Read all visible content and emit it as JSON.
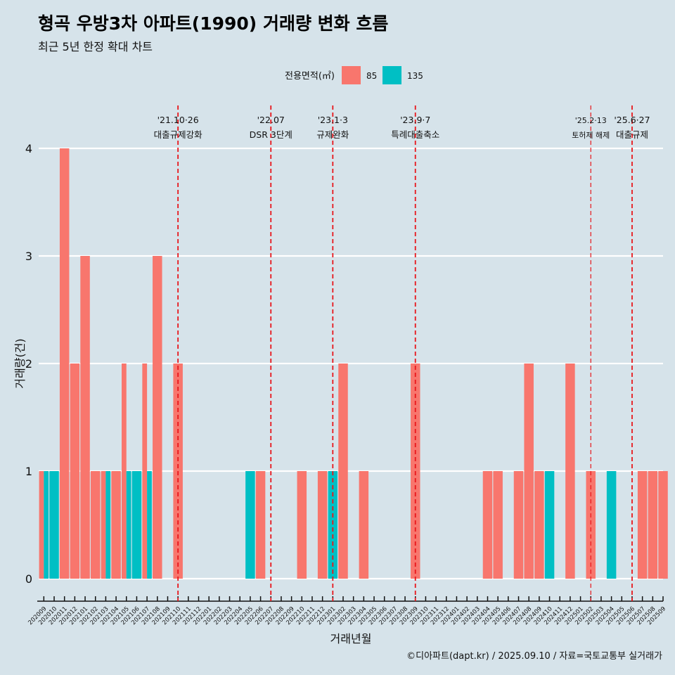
{
  "title": "형곡 우방3차 아파트(1990) 거래량 변화 흐름",
  "subtitle": "최근 5년 한정 확대 차트",
  "caption": "©디아파트(dapt.kr) / 2025.09.10 / 자료=국토교통부 실거래가",
  "chart_data": {
    "type": "bar",
    "xlabel": "거래년월",
    "ylabel": "거래량(건)",
    "ylim": [
      0,
      4
    ],
    "yticks": [
      0,
      1,
      2,
      3,
      4
    ],
    "grid": true,
    "legend": {
      "title": "전용면적(㎡)",
      "position": "top",
      "entries": [
        {
          "name": "85",
          "color": "#f8766d"
        },
        {
          "name": "135",
          "color": "#00bfc4"
        }
      ]
    },
    "categories": [
      "202009",
      "202010",
      "202011",
      "202012",
      "202101",
      "202102",
      "202103",
      "202104",
      "202105",
      "202106",
      "202107",
      "202108",
      "202109",
      "202110",
      "202111",
      "202112",
      "202201",
      "202202",
      "202203",
      "202204",
      "202205",
      "202206",
      "202207",
      "202208",
      "202209",
      "202210",
      "202211",
      "202212",
      "202301",
      "202302",
      "202303",
      "202304",
      "202305",
      "202306",
      "202307",
      "202308",
      "202309",
      "202310",
      "202311",
      "202312",
      "202401",
      "202402",
      "202403",
      "202404",
      "202405",
      "202406",
      "202407",
      "202408",
      "202409",
      "202410",
      "202411",
      "202412",
      "202501",
      "202502",
      "202503",
      "202504",
      "202505",
      "202506",
      "202507",
      "202508",
      "202509"
    ],
    "series": [
      {
        "name": "85",
        "color": "#f8766d",
        "values": [
          1,
          0,
          4,
          2,
          3,
          1,
          1,
          1,
          2,
          0,
          2,
          3,
          0,
          2,
          0,
          0,
          0,
          0,
          0,
          0,
          0,
          1,
          0,
          0,
          0,
          1,
          0,
          1,
          0,
          2,
          0,
          1,
          0,
          0,
          0,
          0,
          2,
          0,
          0,
          0,
          0,
          0,
          0,
          1,
          1,
          0,
          1,
          2,
          1,
          0,
          0,
          2,
          0,
          1,
          0,
          0,
          0,
          0,
          1,
          1,
          1
        ]
      },
      {
        "name": "135",
        "color": "#00bfc4",
        "values": [
          1,
          1,
          0,
          0,
          0,
          0,
          1,
          0,
          1,
          1,
          1,
          0,
          0,
          0,
          0,
          0,
          0,
          0,
          0,
          0,
          1,
          0,
          0,
          0,
          0,
          0,
          0,
          0,
          1,
          0,
          0,
          0,
          0,
          0,
          0,
          0,
          0,
          0,
          0,
          0,
          0,
          0,
          0,
          0,
          0,
          0,
          0,
          0,
          0,
          1,
          0,
          0,
          0,
          0,
          0,
          1,
          0,
          0,
          0,
          0,
          0
        ]
      }
    ],
    "events": [
      {
        "month": "202110",
        "date": "'21.10·26",
        "label": "대출규제강화"
      },
      {
        "month": "202207",
        "date": "'22.07",
        "label": "DSR 3단계"
      },
      {
        "month": "202301",
        "date": "'23.1·3",
        "label": "규제완화"
      },
      {
        "month": "202309",
        "date": "'23.9·7",
        "label": "특례대출축소"
      },
      {
        "month": "202502",
        "date": "'25.2·13",
        "label": "토허제 해제"
      },
      {
        "month": "202506",
        "date": "'25.6·27",
        "label": "대출규제"
      }
    ]
  }
}
